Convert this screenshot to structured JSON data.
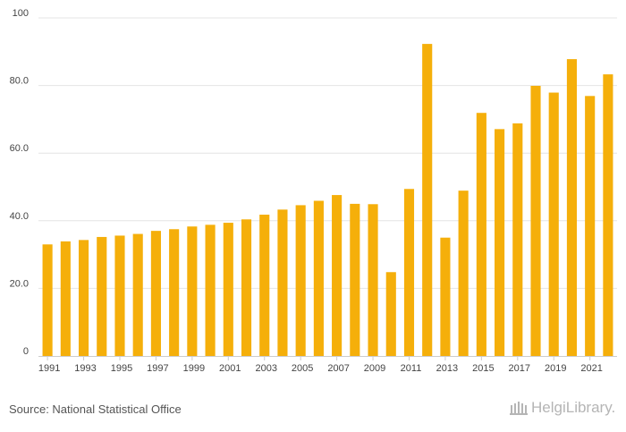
{
  "source": "Source: National Statistical Office",
  "logo_text": "HelgiLibrary.",
  "colors": {
    "bar": "#F5AF0A",
    "grid": "#e4e4e4",
    "axis": "#cccccc",
    "text": "#444444"
  },
  "chart_data": {
    "type": "bar",
    "x": [
      1991,
      1992,
      1993,
      1994,
      1995,
      1996,
      1997,
      1998,
      1999,
      2000,
      2001,
      2002,
      2003,
      2004,
      2005,
      2006,
      2007,
      2008,
      2009,
      2010,
      2011,
      2012,
      2013,
      2014,
      2015,
      2016,
      2017,
      2018,
      2019,
      2020,
      2021,
      2022
    ],
    "values": [
      33.0,
      33.9,
      34.3,
      35.2,
      35.6,
      36.1,
      37.0,
      37.5,
      38.3,
      38.8,
      39.4,
      40.4,
      41.8,
      43.3,
      44.6,
      45.9,
      47.6,
      45.0,
      44.9,
      24.8,
      49.4,
      92.3,
      35.0,
      48.9,
      71.9,
      67.1,
      68.8,
      79.9,
      77.9,
      87.8,
      76.9,
      83.3
    ],
    "x_tick_labels": [
      "1991",
      "1993",
      "1995",
      "1997",
      "1999",
      "2001",
      "2003",
      "2005",
      "2007",
      "2009",
      "2011",
      "2013",
      "2015",
      "2017",
      "2019",
      "2021"
    ],
    "y_ticks": [
      {
        "value": 0,
        "label": "0"
      },
      {
        "value": 20,
        "label": "20.0"
      },
      {
        "value": 40,
        "label": "40.0"
      },
      {
        "value": 60,
        "label": "60.0"
      },
      {
        "value": 80,
        "label": "80.0"
      },
      {
        "value": 100,
        "label": "100"
      }
    ],
    "ylim": [
      0,
      100
    ],
    "grid": true,
    "legend": "none"
  }
}
